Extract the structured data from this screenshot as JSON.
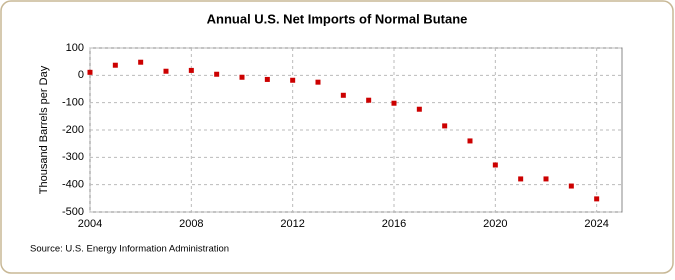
{
  "chart_data": {
    "type": "scatter",
    "title": "Annual U.S. Net Imports of Normal Butane",
    "y_label": "Thousand Barrels per Day",
    "source": "Source: U.S. Energy Information Administration",
    "color": "#cc0000",
    "x": [
      2004,
      2005,
      2006,
      2007,
      2008,
      2009,
      2010,
      2011,
      2012,
      2013,
      2014,
      2015,
      2016,
      2017,
      2018,
      2019,
      2020,
      2021,
      2022,
      2023,
      2024
    ],
    "values": [
      11,
      37,
      48,
      15,
      18,
      4,
      -7,
      -15,
      -18,
      -25,
      -73,
      -91,
      -102,
      -124,
      -185,
      -240,
      -328,
      -379,
      -379,
      -405,
      -452
    ],
    "xlim": [
      2004,
      2025
    ],
    "xticks": [
      2004,
      2008,
      2012,
      2016,
      2020,
      2024
    ],
    "ylim": [
      -500,
      100
    ],
    "yticks": [
      -500,
      -400,
      -300,
      -200,
      -100,
      0,
      100
    ],
    "grid": true
  }
}
